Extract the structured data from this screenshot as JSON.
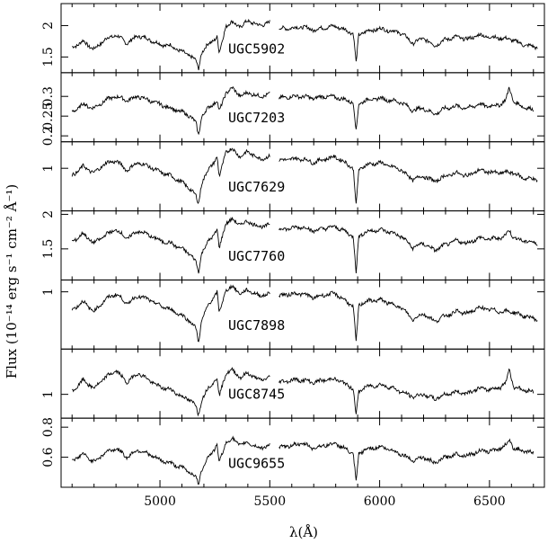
{
  "chart_data": {
    "type": "line",
    "xlabel": "λ(Å)",
    "ylabel": "Flux (10⁻¹⁴ erg s⁻¹ cm⁻² Å⁻¹)",
    "xlim": [
      4550,
      6750
    ],
    "x_ticks": [
      5000,
      5500,
      6000,
      6500
    ],
    "line_color": "#000000",
    "gap": [
      5500,
      5540
    ],
    "panels": [
      {
        "name": "UGC5902",
        "ylim": [
          1.25,
          2.35
        ],
        "y_ticks": [
          1.5,
          2.0
        ],
        "y_tick_labels": [
          "1.5",
          "2"
        ],
        "series": {
          "x": [
            4600,
            4650,
            4700,
            4750,
            4800,
            4850,
            4900,
            4950,
            5000,
            5050,
            5100,
            5140,
            5165,
            5175,
            5190,
            5220,
            5260,
            5270,
            5300,
            5330,
            5370,
            5400,
            5450,
            5500,
            5540,
            5600,
            5650,
            5700,
            5750,
            5800,
            5850,
            5880,
            5893,
            5905,
            5930,
            6000,
            6050,
            6100,
            6150,
            6200,
            6250,
            6300,
            6350,
            6400,
            6450,
            6500,
            6550,
            6600,
            6650,
            6720
          ],
          "y": [
            1.65,
            1.75,
            1.62,
            1.78,
            1.85,
            1.72,
            1.84,
            1.78,
            1.7,
            1.68,
            1.58,
            1.52,
            1.43,
            1.3,
            1.58,
            1.7,
            1.82,
            1.55,
            2.0,
            2.05,
            1.98,
            2.08,
            2.0,
            2.05,
            1.95,
            1.96,
            1.98,
            1.93,
            1.97,
            1.99,
            1.92,
            1.88,
            1.4,
            1.85,
            1.9,
            1.95,
            1.92,
            1.88,
            1.72,
            1.8,
            1.68,
            1.78,
            1.82,
            1.78,
            1.85,
            1.82,
            1.8,
            1.78,
            1.7,
            1.65
          ]
        }
      },
      {
        "name": "UGC7203",
        "ylim": [
          0.185,
          0.36
        ],
        "y_ticks": [
          0.2,
          0.25,
          0.3
        ],
        "y_tick_labels": [
          "0.2",
          "0.25",
          "0.3"
        ],
        "series": {
          "x": [
            4600,
            4650,
            4700,
            4750,
            4800,
            4850,
            4900,
            4950,
            5000,
            5050,
            5100,
            5140,
            5165,
            5175,
            5190,
            5220,
            5260,
            5270,
            5300,
            5330,
            5370,
            5400,
            5450,
            5500,
            5540,
            5600,
            5650,
            5700,
            5750,
            5800,
            5850,
            5880,
            5893,
            5905,
            5930,
            6000,
            6050,
            6100,
            6150,
            6200,
            6250,
            6300,
            6350,
            6400,
            6450,
            6500,
            6550,
            6575,
            6590,
            6610,
            6650,
            6700
          ],
          "y": [
            0.26,
            0.28,
            0.27,
            0.29,
            0.3,
            0.29,
            0.3,
            0.29,
            0.28,
            0.27,
            0.26,
            0.25,
            0.23,
            0.2,
            0.25,
            0.27,
            0.29,
            0.26,
            0.31,
            0.32,
            0.3,
            0.31,
            0.3,
            0.305,
            0.295,
            0.3,
            0.3,
            0.295,
            0.3,
            0.298,
            0.29,
            0.285,
            0.21,
            0.28,
            0.29,
            0.295,
            0.29,
            0.285,
            0.265,
            0.27,
            0.255,
            0.27,
            0.275,
            0.27,
            0.28,
            0.275,
            0.28,
            0.29,
            0.325,
            0.285,
            0.275,
            0.265
          ]
        }
      },
      {
        "name": "UGC7629",
        "ylim": [
          0.55,
          1.28
        ],
        "y_ticks": [
          1.0
        ],
        "y_tick_labels": [
          "1"
        ],
        "series": {
          "x": [
            4600,
            4650,
            4700,
            4750,
            4800,
            4850,
            4900,
            4950,
            5000,
            5050,
            5100,
            5140,
            5165,
            5175,
            5190,
            5220,
            5260,
            5270,
            5300,
            5330,
            5370,
            5400,
            5450,
            5500,
            5540,
            5600,
            5650,
            5700,
            5750,
            5800,
            5850,
            5880,
            5893,
            5905,
            5930,
            6000,
            6050,
            6100,
            6150,
            6200,
            6250,
            6300,
            6350,
            6400,
            6450,
            6500,
            6550,
            6600,
            6650,
            6720
          ],
          "y": [
            0.92,
            1.02,
            0.95,
            1.05,
            1.08,
            0.98,
            1.06,
            1.02,
            0.96,
            0.92,
            0.85,
            0.78,
            0.7,
            0.62,
            0.85,
            0.98,
            1.12,
            0.9,
            1.18,
            1.2,
            1.12,
            1.18,
            1.1,
            1.12,
            1.08,
            1.1,
            1.1,
            1.06,
            1.1,
            1.12,
            1.05,
            1.0,
            0.6,
            0.98,
            1.03,
            1.06,
            1.02,
            0.98,
            0.88,
            0.92,
            0.86,
            0.92,
            0.95,
            0.92,
            0.98,
            0.96,
            0.95,
            0.96,
            0.9,
            0.88
          ]
        }
      },
      {
        "name": "UGC7760",
        "ylim": [
          1.05,
          2.05
        ],
        "y_ticks": [
          1.5,
          2.0
        ],
        "y_tick_labels": [
          "1.5",
          "2"
        ],
        "series": {
          "x": [
            4600,
            4650,
            4700,
            4750,
            4800,
            4850,
            4900,
            4950,
            5000,
            5050,
            5100,
            5140,
            5165,
            5175,
            5190,
            5220,
            5260,
            5270,
            5300,
            5330,
            5370,
            5400,
            5450,
            5500,
            5540,
            5600,
            5650,
            5700,
            5750,
            5800,
            5850,
            5880,
            5893,
            5905,
            5930,
            6000,
            6050,
            6100,
            6150,
            6200,
            6250,
            6300,
            6350,
            6400,
            6450,
            6500,
            6550,
            6575,
            6590,
            6610,
            6650,
            6720
          ],
          "y": [
            1.6,
            1.72,
            1.58,
            1.7,
            1.78,
            1.65,
            1.76,
            1.7,
            1.62,
            1.58,
            1.5,
            1.42,
            1.3,
            1.15,
            1.45,
            1.6,
            1.78,
            1.5,
            1.88,
            1.92,
            1.85,
            1.9,
            1.82,
            1.85,
            1.78,
            1.8,
            1.82,
            1.76,
            1.8,
            1.82,
            1.74,
            1.68,
            1.15,
            1.68,
            1.74,
            1.78,
            1.74,
            1.68,
            1.52,
            1.58,
            1.48,
            1.56,
            1.62,
            1.58,
            1.66,
            1.64,
            1.66,
            1.7,
            1.78,
            1.66,
            1.62,
            1.58
          ]
        }
      },
      {
        "name": "UGC7898",
        "ylim": [
          0.42,
          1.12
        ],
        "y_ticks": [
          1.0
        ],
        "y_tick_labels": [
          "1"
        ],
        "series": {
          "x": [
            4600,
            4650,
            4700,
            4750,
            4800,
            4850,
            4900,
            4950,
            5000,
            5050,
            5100,
            5140,
            5165,
            5175,
            5190,
            5220,
            5260,
            5270,
            5300,
            5330,
            5370,
            5400,
            5450,
            5500,
            5540,
            5600,
            5650,
            5700,
            5750,
            5800,
            5850,
            5880,
            5893,
            5905,
            5930,
            6000,
            6050,
            6100,
            6150,
            6200,
            6250,
            6300,
            6350,
            6400,
            6450,
            6500,
            6550,
            6600,
            6650,
            6720
          ],
          "y": [
            0.82,
            0.9,
            0.8,
            0.92,
            0.98,
            0.88,
            0.96,
            0.92,
            0.86,
            0.82,
            0.76,
            0.7,
            0.62,
            0.48,
            0.72,
            0.86,
            1.0,
            0.78,
            1.02,
            1.05,
            0.98,
            1.02,
            0.96,
            0.98,
            0.96,
            0.98,
            0.98,
            0.94,
            0.97,
            0.98,
            0.9,
            0.85,
            0.48,
            0.86,
            0.9,
            0.92,
            0.88,
            0.84,
            0.72,
            0.78,
            0.7,
            0.76,
            0.8,
            0.78,
            0.84,
            0.82,
            0.8,
            0.8,
            0.76,
            0.72
          ]
        }
      },
      {
        "name": "UGC8745",
        "ylim": [
          0.8,
          1.38
        ],
        "y_ticks": [
          1.0
        ],
        "y_tick_labels": [
          "1"
        ],
        "series": {
          "x": [
            4600,
            4650,
            4700,
            4750,
            4800,
            4850,
            4900,
            4950,
            5000,
            5050,
            5100,
            5140,
            5165,
            5175,
            5190,
            5220,
            5260,
            5270,
            5300,
            5330,
            5370,
            5400,
            5450,
            5500,
            5540,
            5600,
            5650,
            5700,
            5750,
            5800,
            5850,
            5880,
            5893,
            5905,
            5930,
            6000,
            6050,
            6100,
            6150,
            6200,
            6250,
            6300,
            6350,
            6400,
            6450,
            6500,
            6550,
            6575,
            6590,
            6610,
            6650,
            6700
          ],
          "y": [
            1.02,
            1.12,
            1.05,
            1.14,
            1.2,
            1.1,
            1.18,
            1.12,
            1.06,
            1.04,
            0.98,
            0.95,
            0.9,
            0.82,
            0.96,
            1.05,
            1.14,
            0.98,
            1.18,
            1.2,
            1.14,
            1.18,
            1.12,
            1.14,
            1.1,
            1.12,
            1.12,
            1.1,
            1.12,
            1.13,
            1.08,
            1.05,
            0.82,
            1.02,
            1.06,
            1.08,
            1.06,
            1.02,
            0.98,
            1.0,
            0.96,
            1.0,
            1.02,
            1.01,
            1.05,
            1.04,
            1.06,
            1.1,
            1.22,
            1.06,
            1.04,
            1.02
          ]
        }
      },
      {
        "name": "UGC9655",
        "ylim": [
          0.4,
          0.86
        ],
        "y_ticks": [
          0.6,
          0.8
        ],
        "y_tick_labels": [
          "0.6",
          "0.8"
        ],
        "series": {
          "x": [
            4600,
            4650,
            4700,
            4750,
            4800,
            4850,
            4900,
            4950,
            5000,
            5050,
            5100,
            5140,
            5165,
            5175,
            5190,
            5220,
            5260,
            5270,
            5300,
            5330,
            5370,
            5400,
            5450,
            5500,
            5540,
            5600,
            5650,
            5700,
            5750,
            5800,
            5850,
            5880,
            5893,
            5905,
            5930,
            6000,
            6050,
            6100,
            6150,
            6200,
            6250,
            6300,
            6350,
            6400,
            6450,
            6500,
            6550,
            6575,
            6590,
            6610,
            6650,
            6700
          ],
          "y": [
            0.58,
            0.62,
            0.57,
            0.63,
            0.66,
            0.6,
            0.65,
            0.62,
            0.58,
            0.56,
            0.53,
            0.5,
            0.46,
            0.42,
            0.52,
            0.6,
            0.68,
            0.56,
            0.7,
            0.72,
            0.68,
            0.7,
            0.66,
            0.68,
            0.66,
            0.68,
            0.69,
            0.66,
            0.68,
            0.69,
            0.65,
            0.62,
            0.43,
            0.62,
            0.65,
            0.67,
            0.65,
            0.62,
            0.58,
            0.6,
            0.56,
            0.6,
            0.62,
            0.61,
            0.64,
            0.64,
            0.66,
            0.68,
            0.72,
            0.66,
            0.64,
            0.63
          ]
        }
      }
    ]
  }
}
